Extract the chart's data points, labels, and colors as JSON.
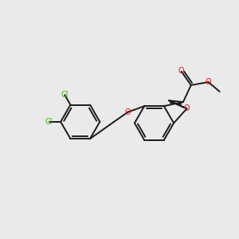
{
  "bg_color": "#eaeaea",
  "bond_color": "#1a1a1a",
  "cl_color": "#33bb00",
  "o_color": "#ee1111",
  "line_width": 1.4,
  "figsize": [
    3.0,
    3.0
  ],
  "dpi": 100,
  "xlim": [
    0,
    10
  ],
  "ylim": [
    0,
    10
  ]
}
